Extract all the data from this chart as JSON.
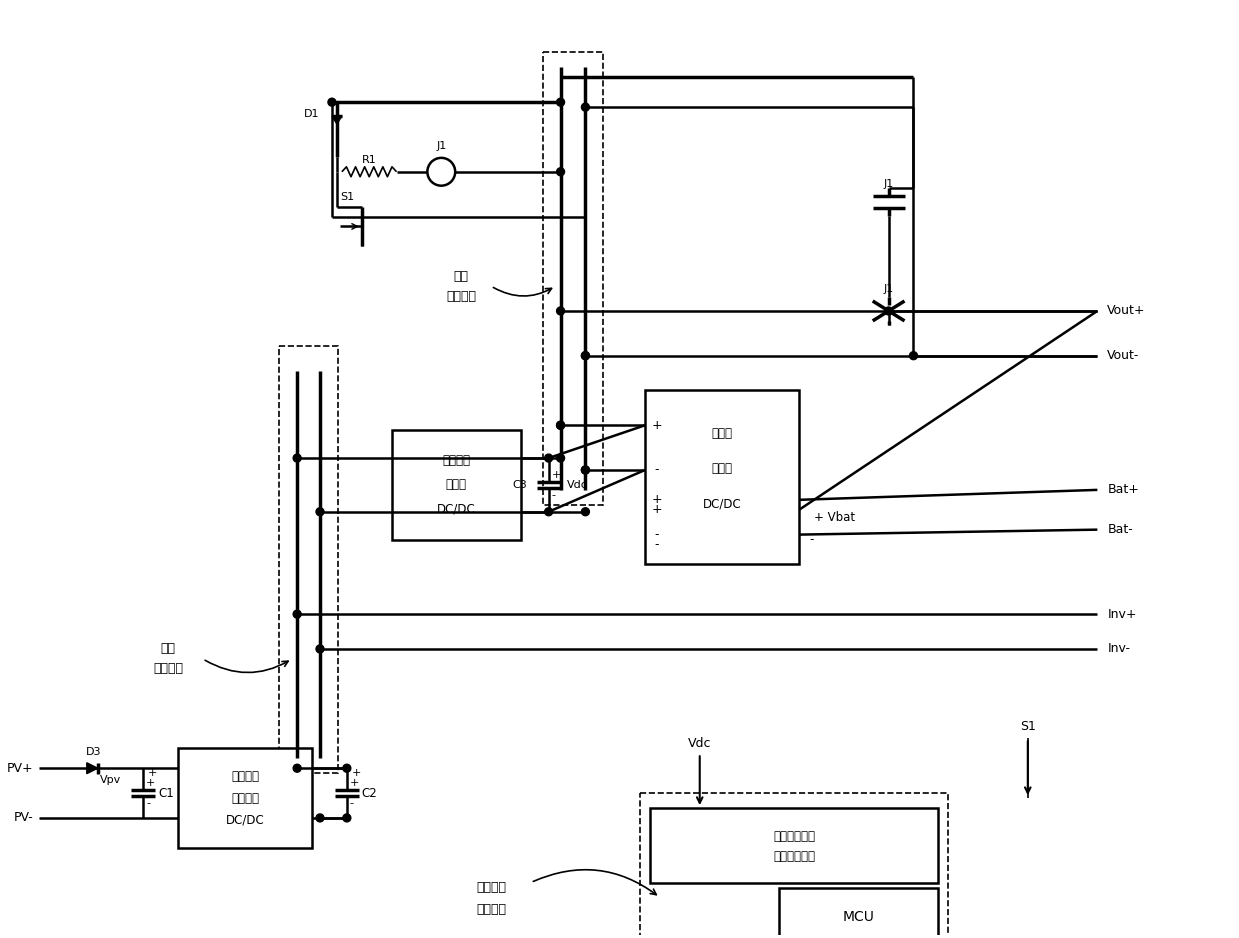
{
  "bg_color": "#ffffff",
  "fig_width": 12.39,
  "fig_height": 9.38,
  "labels": {
    "pv_plus": "PV+",
    "pv_minus": "PV-",
    "vout_plus": "Vout+",
    "vout_minus": "Vout-",
    "bat_plus": "Bat+",
    "bat_minus": "Bat-",
    "inv_plus": "Inv+",
    "inv_minus": "Inv-",
    "vdc_label": "Vdc",
    "s1_label": "S1",
    "d1": "D1",
    "d3": "D3",
    "r1": "R1",
    "j1": "J1",
    "c1": "C1",
    "c2": "C2",
    "c3": "C3",
    "vpv": "Vpv",
    "vdc_cap": "Vdc",
    "vbat": "Vbat",
    "mppt1": "最大功率",
    "mppt2": "点跟踪器",
    "mppt3": "DC/DC",
    "dcdc1": "直流降压",
    "dcdc2": "变换器",
    "dcdc3": "DC/DC",
    "chg1": "充放电",
    "chg2": "控制器",
    "chg3": "DC/DC",
    "lv1": "低压",
    "lv2": "直流母线",
    "mv1": "中压",
    "mv2": "直流母线",
    "samp1": "低压直流母线",
    "samp2": "电压采样电路",
    "mcu": "MCU",
    "run1": "运行模式",
    "run2": "控制单元"
  }
}
